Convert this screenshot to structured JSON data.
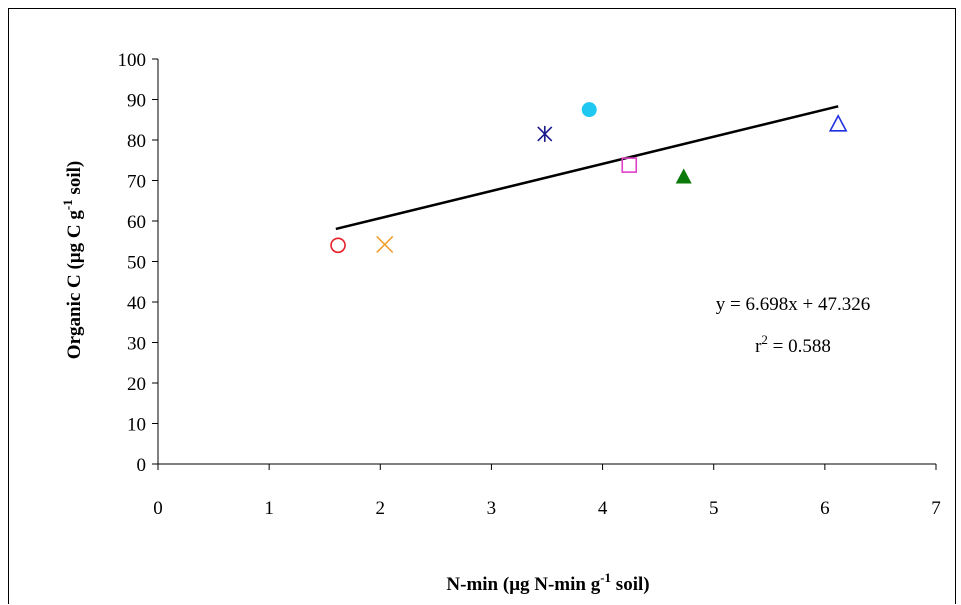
{
  "chart_data": {
    "type": "scatter",
    "xlabel": {
      "main": "N-min (μg N-min g",
      "sup": "-1",
      "tail": " soil)"
    },
    "ylabel": {
      "main": "Organic C (μg C g",
      "sup": "-1",
      "tail": " soil)"
    },
    "xlim": [
      0,
      7
    ],
    "ylim": [
      0,
      100
    ],
    "x_ticks": [
      0,
      1,
      2,
      3,
      4,
      5,
      6,
      7
    ],
    "y_ticks": [
      0,
      10,
      20,
      30,
      40,
      50,
      60,
      70,
      80,
      90,
      100
    ],
    "grid": false,
    "points": [
      {
        "x": 1.62,
        "y": 54,
        "marker": "circle-open",
        "color": "#e8202a"
      },
      {
        "x": 2.04,
        "y": 54.2,
        "marker": "x",
        "color": "#f0a030"
      },
      {
        "x": 3.48,
        "y": 81.5,
        "marker": "asterisk",
        "color": "#1a1a8c"
      },
      {
        "x": 3.88,
        "y": 87.5,
        "marker": "circle-filled",
        "color": "#1ec8f0"
      },
      {
        "x": 4.24,
        "y": 73.8,
        "marker": "square-open",
        "color": "#e040c8"
      },
      {
        "x": 4.73,
        "y": 71,
        "marker": "triangle-filled",
        "color": "#0a7a0a"
      },
      {
        "x": 6.12,
        "y": 84,
        "marker": "triangle-open",
        "color": "#2030e0"
      }
    ],
    "trendline": {
      "slope": 6.698,
      "intercept": 47.326,
      "x_range": [
        1.6,
        6.12
      ],
      "color": "#000000"
    },
    "annotation": {
      "equation": "y = 6.698x + 47.326",
      "r2_base": "r",
      "r2_sup": "2",
      "r2_tail": " = 0.588"
    }
  }
}
